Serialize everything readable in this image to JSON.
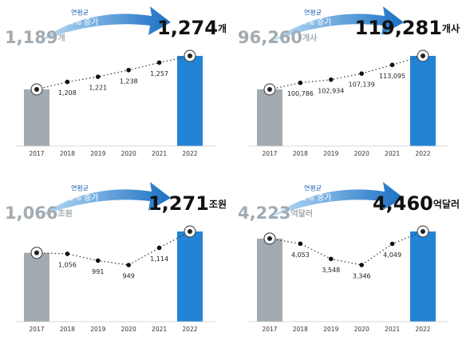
{
  "chart_data": [
    {
      "type": "line",
      "categories": [
        "2017",
        "2018",
        "2019",
        "2020",
        "2021",
        "2022"
      ],
      "values": [
        1189,
        1208,
        1221,
        1238,
        1257,
        1274
      ],
      "value_labels": [
        "1,189",
        "1,208",
        "1,221",
        "1,238",
        "1,257",
        "1,274"
      ],
      "unit": "개",
      "annotation": [
        "연평균",
        "1.4% 증가"
      ],
      "colors": [
        "#a2abb1",
        "#2383d5"
      ]
    },
    {
      "type": "line",
      "categories": [
        "2017",
        "2018",
        "2019",
        "2020",
        "2021",
        "2022"
      ],
      "values": [
        96260,
        100786,
        102934,
        107139,
        113095,
        119281
      ],
      "value_labels": [
        "96,260",
        "100,786",
        "102,934",
        "107,139",
        "113,095",
        "119,281"
      ],
      "unit": "개사",
      "annotation": [
        "연평균",
        "4.4% 증가"
      ],
      "colors": [
        "#a2abb1",
        "#2383d5"
      ]
    },
    {
      "type": "line",
      "categories": [
        "2017",
        "2018",
        "2019",
        "2020",
        "2021",
        "2022"
      ],
      "values": [
        1066,
        1056,
        991,
        949,
        1114,
        1271
      ],
      "value_labels": [
        "1,066",
        "1,056",
        "991",
        "949",
        "1,114",
        "1,271"
      ],
      "unit": "조원",
      "annotation": [
        "연평균",
        "3.6% 증가"
      ],
      "colors": [
        "#a2abb1",
        "#2383d5"
      ]
    },
    {
      "type": "line",
      "categories": [
        "2017",
        "2018",
        "2019",
        "2020",
        "2021",
        "2022"
      ],
      "values": [
        4223,
        4053,
        3548,
        3346,
        4049,
        4460
      ],
      "value_labels": [
        "4,223",
        "4,053",
        "3,548",
        "3,346",
        "4,049",
        "4,460"
      ],
      "unit": "억달러",
      "annotation": [
        "연평균",
        "1.1% 증가"
      ],
      "colors": [
        "#a2abb1",
        "#2383d5"
      ]
    }
  ]
}
